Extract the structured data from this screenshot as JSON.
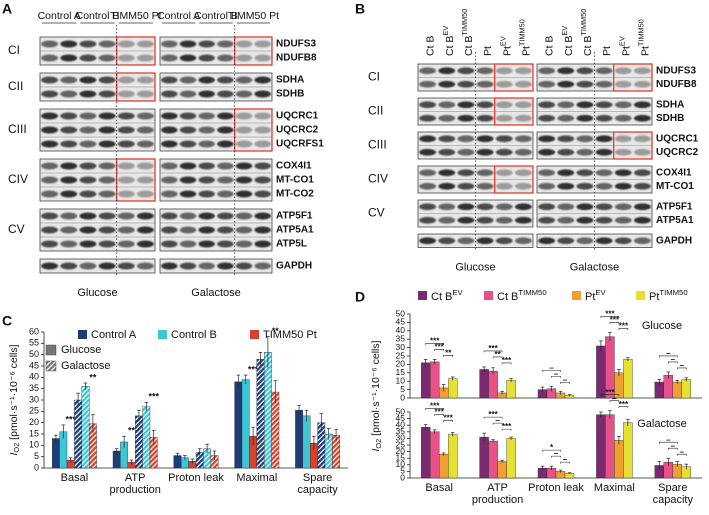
{
  "panel_a": {
    "panel": "A",
    "lane_groups": [
      "Control A",
      "Control B",
      "TIMM50 Pt"
    ],
    "complexes": [
      {
        "name": "CI",
        "proteins": [
          "NDUFS3",
          "NDUFB8"
        ]
      },
      {
        "name": "CII",
        "proteins": [
          "SDHA",
          "SDHB"
        ]
      },
      {
        "name": "CIII",
        "proteins": [
          "UQCRC1",
          "UQCRC2",
          "UQCRFS1"
        ]
      },
      {
        "name": "CIV",
        "proteins": [
          "COX4I1",
          "MT-CO1",
          "MT-CO2"
        ]
      },
      {
        "name": "CV",
        "proteins": [
          "ATP5F1",
          "ATP5A1",
          "ATP5L"
        ]
      }
    ],
    "loading_control": "GAPDH",
    "conditions": [
      "Glucose",
      "Galactose"
    ]
  },
  "panel_b": {
    "panel": "B",
    "lanes": [
      {
        "name": "Ct B"
      },
      {
        "name": "Ct B",
        "superscript": "EV"
      },
      {
        "name": "Ct B",
        "superscript": "TIMM50"
      },
      {
        "name": "Pt"
      },
      {
        "name": "Pt",
        "superscript": "EV"
      },
      {
        "name": "Pt",
        "superscript": "TIMM50"
      }
    ],
    "complexes": [
      {
        "name": "CI",
        "proteins": [
          "NDUFS3",
          "NDUFB8"
        ]
      },
      {
        "name": "CII",
        "proteins": [
          "SDHA",
          "SDHB"
        ]
      },
      {
        "name": "CIII",
        "proteins": [
          "UQCRC1",
          "UQCRC2"
        ]
      },
      {
        "name": "CIV",
        "proteins": [
          "COX4I1",
          "MT-CO1"
        ]
      },
      {
        "name": "CV",
        "proteins": [
          "ATP5F1",
          "ATP5A1"
        ]
      }
    ],
    "loading_control": "GAPDH",
    "conditions": [
      "Glucose",
      "Galactose"
    ]
  },
  "chart_data": [
    {
      "panel": "C",
      "type": "bar",
      "y_label": {
        "symbol": "I",
        "subscript": "O2",
        "unit": "[pmol·s⁻¹·10⁻⁶ cells]"
      },
      "categories": [
        "Basal",
        "ATP production",
        "Proton leak",
        "Maximal",
        "Spare capacity"
      ],
      "conditions": [
        "Glucose",
        "Galactose"
      ],
      "series": [
        {
          "name": "Control A",
          "color": "#1c3d7a",
          "values": [
            [
              13,
              7.5,
              5.5,
              38,
              25.5
            ],
            [
              30,
              23,
              7,
              48,
              20
            ]
          ],
          "errors": [
            [
              1.5,
              1,
              1,
              3,
              2
            ],
            [
              3,
              2.5,
              1.5,
              3,
              4
            ]
          ]
        },
        {
          "name": "Control B",
          "color": "#3cc6d6",
          "values": [
            [
              16,
              11.5,
              4.5,
              39,
              23
            ],
            [
              36,
              27,
              8.5,
              51,
              15
            ]
          ],
          "errors": [
            [
              3,
              2.5,
              1,
              2,
              2.5
            ],
            [
              1.5,
              2,
              2,
              7,
              2.5
            ]
          ]
        },
        {
          "name": "TIMM50 Pt",
          "color": "#d9412d",
          "values": [
            [
              3.5,
              2.5,
              3,
              14,
              11
            ],
            [
              19.5,
              13.5,
              5.5,
              33.5,
              14.5
            ]
          ],
          "errors": [
            [
              1,
              1,
              1,
              4,
              3
            ],
            [
              4,
              3,
              2,
              5,
              2.5
            ]
          ],
          "significance": [
            [
              "***",
              "**",
              null,
              "***",
              null
            ],
            [
              "**",
              "***",
              null,
              "**",
              null
            ]
          ]
        }
      ],
      "ylim": [
        0,
        60
      ],
      "yticks": [
        0,
        5,
        10,
        15,
        20,
        25,
        30,
        35,
        40,
        45,
        50,
        55,
        60
      ]
    },
    {
      "panel": "D",
      "type": "bar",
      "title": "Glucose",
      "y_label": {
        "symbol": "I",
        "subscript": "O2",
        "unit": "[pmol·s⁻¹·10⁻⁶ cells]"
      },
      "series": [
        {
          "name": "Ct B",
          "superscript": "EV",
          "color": "#7a2a6e",
          "values": [
            21,
            17,
            5,
            31,
            9.5
          ],
          "errors": [
            2,
            1.5,
            1.5,
            3,
            1.5
          ]
        },
        {
          "name": "Ct B",
          "superscript": "TIMM50",
          "color": "#e8508a",
          "values": [
            21.5,
            16,
            5.5,
            36.5,
            13.5
          ],
          "errors": [
            1.5,
            2,
            1.5,
            2.5,
            2
          ]
        },
        {
          "name": "Pt",
          "superscript": "EV",
          "color": "#f0a030",
          "values": [
            6,
            3,
            3,
            15,
            9.5
          ],
          "errors": [
            2,
            1,
            1,
            2,
            1
          ]
        },
        {
          "name": "Pt",
          "superscript": "TIMM50",
          "color": "#e6e033",
          "values": [
            11.5,
            10.5,
            1.5,
            23,
            11
          ],
          "errors": [
            1,
            1,
            0.5,
            1,
            1
          ]
        }
      ],
      "brackets": [
        [
          {
            "from": 0,
            "to": 2,
            "label": "***"
          },
          {
            "from": 1,
            "to": 2,
            "label": "***"
          },
          {
            "from": 2,
            "to": 3,
            "label": "**"
          }
        ],
        [
          {
            "from": 0,
            "to": 2,
            "label": "***"
          },
          {
            "from": 1,
            "to": 2,
            "label": "**"
          },
          {
            "from": 2,
            "to": 3,
            "label": "***"
          }
        ],
        [
          {
            "from": 0,
            "to": 2,
            "label": "–"
          },
          {
            "from": 1,
            "to": 2,
            "label": "–"
          },
          {
            "from": 2,
            "to": 3,
            "label": "–"
          }
        ],
        [
          {
            "from": 0,
            "to": 2,
            "label": "***"
          },
          {
            "from": 1,
            "to": 2,
            "label": "***"
          },
          {
            "from": 2,
            "to": 3,
            "label": "***"
          }
        ],
        [
          {
            "from": 0,
            "to": 2,
            "label": "–"
          },
          {
            "from": 1,
            "to": 2,
            "label": "–"
          },
          {
            "from": 2,
            "to": 3,
            "label": "–"
          }
        ]
      ],
      "ylim": [
        0,
        50
      ],
      "yticks": [
        0,
        5,
        10,
        15,
        20,
        25,
        30,
        35,
        40,
        45,
        50
      ]
    },
    {
      "type": "bar",
      "title": "Galactose",
      "categories": [
        "Basal",
        "ATP production",
        "Proton leak",
        "Maximal",
        "Spare capacity"
      ],
      "series": [
        {
          "color": "#7a2a6e",
          "values": [
            38.5,
            31,
            7.5,
            48,
            9.5
          ],
          "errors": [
            2,
            3,
            1.5,
            2,
            3
          ]
        },
        {
          "color": "#e8508a",
          "values": [
            35,
            28,
            7.5,
            48,
            12
          ],
          "errors": [
            1.5,
            1,
            1.5,
            3,
            3
          ]
        },
        {
          "color": "#f0a030",
          "values": [
            18,
            12.5,
            5,
            28.5,
            10.5
          ],
          "errors": [
            1,
            1,
            1,
            3,
            2
          ]
        },
        {
          "color": "#e6e033",
          "values": [
            33,
            30,
            3.5,
            42,
            8.5
          ],
          "errors": [
            1.5,
            1,
            0.5,
            2.5,
            2
          ]
        }
      ],
      "brackets": [
        [
          {
            "from": 0,
            "to": 2,
            "label": "***"
          },
          {
            "from": 1,
            "to": 2,
            "label": "***"
          },
          {
            "from": 2,
            "to": 3,
            "label": "***"
          }
        ],
        [
          {
            "from": 0,
            "to": 2,
            "label": "***"
          },
          {
            "from": 1,
            "to": 2,
            "label": "–"
          },
          {
            "from": 2,
            "to": 3,
            "label": "***"
          }
        ],
        [
          {
            "from": 0,
            "to": 2,
            "label": "*"
          },
          {
            "from": 1,
            "to": 2,
            "label": "–"
          },
          {
            "from": 2,
            "to": 3,
            "label": "–"
          }
        ],
        [
          {
            "from": 0,
            "to": 2,
            "label": "***"
          },
          {
            "from": 1,
            "to": 2,
            "label": "–"
          },
          {
            "from": 2,
            "to": 3,
            "label": "***"
          }
        ],
        [
          {
            "from": 0,
            "to": 2,
            "label": "–"
          },
          {
            "from": 1,
            "to": 2,
            "label": "–"
          },
          {
            "from": 2,
            "to": 3,
            "label": "–"
          }
        ]
      ],
      "ylim": [
        0,
        50
      ],
      "yticks": [
        0,
        5,
        10,
        15,
        20,
        25,
        30,
        35,
        40,
        45,
        50
      ]
    }
  ]
}
